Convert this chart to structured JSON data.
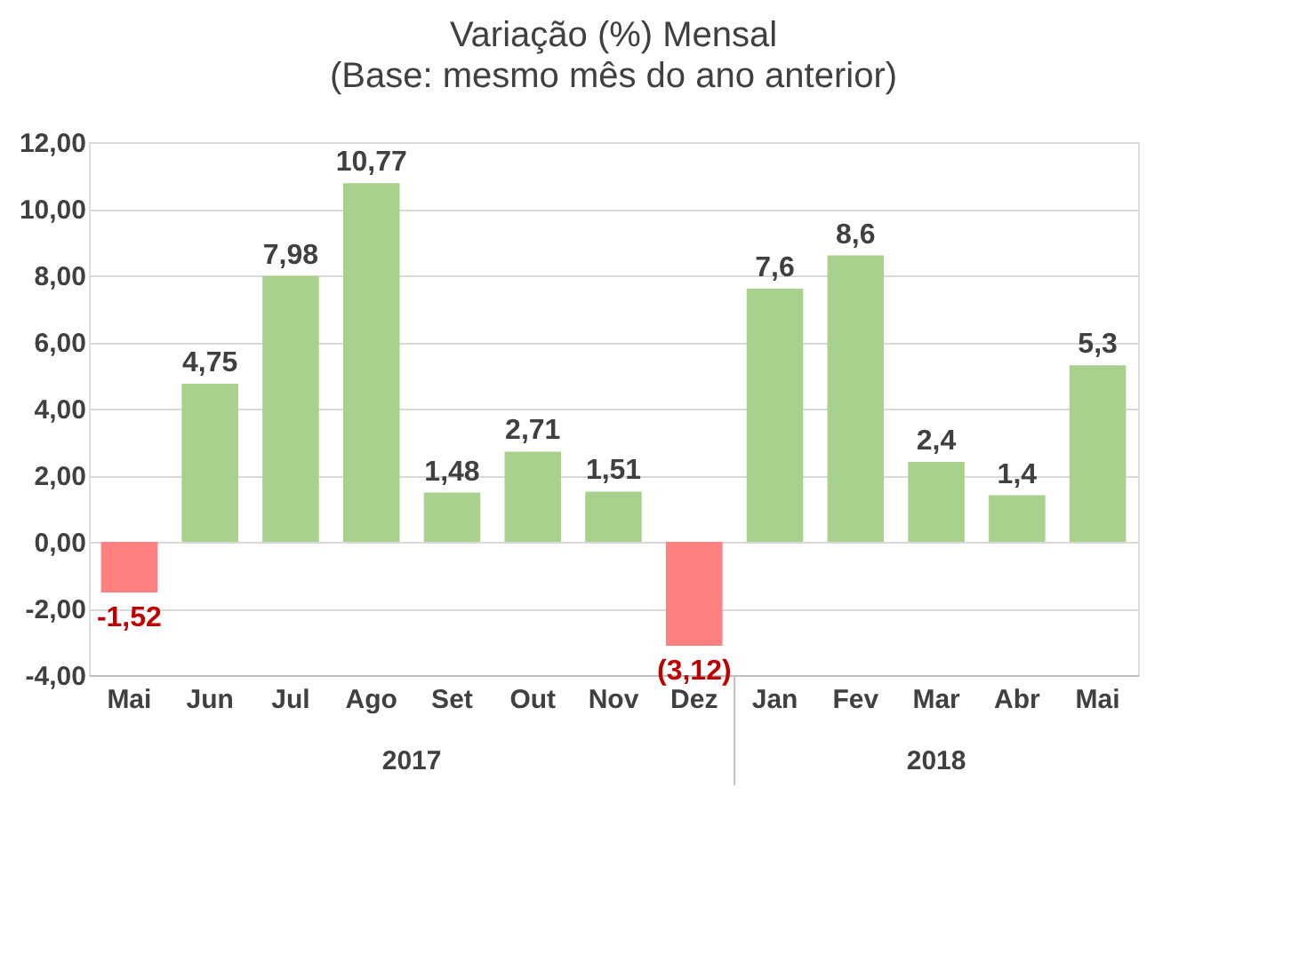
{
  "chart_data": {
    "type": "bar",
    "title": "Variação (%) Mensal",
    "subtitle": "(Base: mesmo mês do ano anterior)",
    "categories": [
      "Mai",
      "Jun",
      "Jul",
      "Ago",
      "Set",
      "Out",
      "Nov",
      "Dez",
      "Jan",
      "Fev",
      "Mar",
      "Abr",
      "Mai"
    ],
    "values": [
      -1.52,
      4.75,
      7.98,
      10.77,
      1.48,
      2.71,
      1.51,
      -3.12,
      7.6,
      8.6,
      2.4,
      1.4,
      5.3
    ],
    "value_labels": [
      "-1,52",
      "4,75",
      "7,98",
      "10,77",
      "1,48",
      "2,71",
      "1,51",
      "(3,12)",
      "7,6",
      "8,6",
      "2,4",
      "1,4",
      "5,3"
    ],
    "colors": [
      "#ff8080",
      "#a9d18e",
      "#a9d18e",
      "#a9d18e",
      "#a9d18e",
      "#a9d18e",
      "#a9d18e",
      "#ff8080",
      "#a9d18e",
      "#a9d18e",
      "#a9d18e",
      "#a9d18e",
      "#a9d18e"
    ],
    "ylim": [
      -4,
      12
    ],
    "yticks": [
      {
        "value": -4,
        "label": "-4,00"
      },
      {
        "value": -2,
        "label": "-2,00"
      },
      {
        "value": 0,
        "label": "0,00"
      },
      {
        "value": 2,
        "label": "2,00"
      },
      {
        "value": 4,
        "label": "4,00"
      },
      {
        "value": 6,
        "label": "6,00"
      },
      {
        "value": 8,
        "label": "8,00"
      },
      {
        "value": 10,
        "label": "10,00"
      },
      {
        "value": 12,
        "label": "12,00"
      }
    ],
    "grid": "y",
    "annotations": [
      "2017",
      "2018"
    ]
  }
}
